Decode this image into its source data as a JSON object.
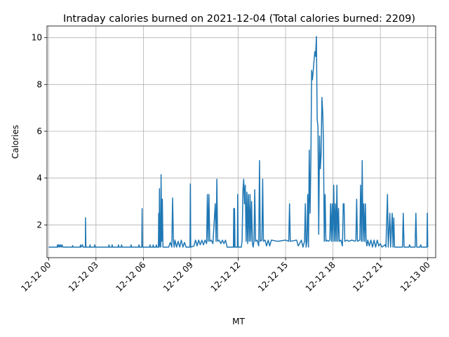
{
  "chart_data": {
    "type": "line",
    "title": "Intraday calories burned on 2021-12-04 (Total calories burned: 2209)",
    "xlabel": "MT",
    "ylabel": "Calories",
    "x_axis_kind": "time (hours)",
    "xlim": [
      -0.1,
      24.5
    ],
    "ylim": [
      0.6,
      10.5
    ],
    "grid": true,
    "x_ticks": [
      {
        "value": 0,
        "label": "12-12 00"
      },
      {
        "value": 3,
        "label": "12-12 03"
      },
      {
        "value": 6,
        "label": "12-12 06"
      },
      {
        "value": 9,
        "label": "12-12 09"
      },
      {
        "value": 12,
        "label": "12-12 12"
      },
      {
        "value": 15,
        "label": "12-12 15"
      },
      {
        "value": 18,
        "label": "12-12 18"
      },
      {
        "value": 21,
        "label": "12-12 21"
      },
      {
        "value": 24,
        "label": "12-13 00"
      }
    ],
    "y_ticks": [
      {
        "value": 2,
        "label": "2"
      },
      {
        "value": 4,
        "label": "4"
      },
      {
        "value": 6,
        "label": "6"
      },
      {
        "value": 8,
        "label": "8"
      },
      {
        "value": 10,
        "label": "10"
      }
    ],
    "series": [
      {
        "color": "#1f77b4",
        "baseline": 1.05,
        "points": [
          [
            0.0,
            1.05
          ],
          [
            0.55,
            1.05
          ],
          [
            0.56,
            1.15
          ],
          [
            0.6,
            1.05
          ],
          [
            0.65,
            1.15
          ],
          [
            0.7,
            1.05
          ],
          [
            0.75,
            1.15
          ],
          [
            0.8,
            1.05
          ],
          [
            0.85,
            1.15
          ],
          [
            0.9,
            1.05
          ],
          [
            1.5,
            1.05
          ],
          [
            1.52,
            1.12
          ],
          [
            1.55,
            1.05
          ],
          [
            2.0,
            1.05
          ],
          [
            2.02,
            1.15
          ],
          [
            2.05,
            1.05
          ],
          [
            2.15,
            1.15
          ],
          [
            2.18,
            1.05
          ],
          [
            2.33,
            1.05
          ],
          [
            2.34,
            2.3
          ],
          [
            2.36,
            1.05
          ],
          [
            2.6,
            1.05
          ],
          [
            2.62,
            1.15
          ],
          [
            2.65,
            1.05
          ],
          [
            2.9,
            1.05
          ],
          [
            2.92,
            1.15
          ],
          [
            2.95,
            1.05
          ],
          [
            3.8,
            1.05
          ],
          [
            3.82,
            1.15
          ],
          [
            3.85,
            1.05
          ],
          [
            4.0,
            1.05
          ],
          [
            4.02,
            1.15
          ],
          [
            4.05,
            1.05
          ],
          [
            4.4,
            1.05
          ],
          [
            4.42,
            1.15
          ],
          [
            4.45,
            1.05
          ],
          [
            4.6,
            1.05
          ],
          [
            4.62,
            1.15
          ],
          [
            4.65,
            1.05
          ],
          [
            5.2,
            1.05
          ],
          [
            5.22,
            1.15
          ],
          [
            5.25,
            1.05
          ],
          [
            5.7,
            1.05
          ],
          [
            5.72,
            1.15
          ],
          [
            5.75,
            1.05
          ],
          [
            5.9,
            1.05
          ],
          [
            5.92,
            2.7
          ],
          [
            5.95,
            1.05
          ],
          [
            6.4,
            1.05
          ],
          [
            6.42,
            1.15
          ],
          [
            6.45,
            1.05
          ],
          [
            6.6,
            1.05
          ],
          [
            6.62,
            1.15
          ],
          [
            6.65,
            1.05
          ],
          [
            6.8,
            1.05
          ],
          [
            6.82,
            1.15
          ],
          [
            6.85,
            1.05
          ],
          [
            6.95,
            1.05
          ],
          [
            6.97,
            2.5
          ],
          [
            7.0,
            1.05
          ],
          [
            7.02,
            3.55
          ],
          [
            7.06,
            1.15
          ],
          [
            7.1,
            1.05
          ],
          [
            7.12,
            4.15
          ],
          [
            7.16,
            1.3
          ],
          [
            7.2,
            3.1
          ],
          [
            7.24,
            1.05
          ],
          [
            7.6,
            1.05
          ],
          [
            7.7,
            1.25
          ],
          [
            7.8,
            1.05
          ],
          [
            7.85,
            3.15
          ],
          [
            7.9,
            1.35
          ],
          [
            7.95,
            1.05
          ],
          [
            8.0,
            1.35
          ],
          [
            8.1,
            1.05
          ],
          [
            8.2,
            1.3
          ],
          [
            8.3,
            1.05
          ],
          [
            8.4,
            1.35
          ],
          [
            8.5,
            1.05
          ],
          [
            8.6,
            1.25
          ],
          [
            8.7,
            1.05
          ],
          [
            8.95,
            1.05
          ],
          [
            8.97,
            3.75
          ],
          [
            9.0,
            1.05
          ],
          [
            9.2,
            1.1
          ],
          [
            9.3,
            1.35
          ],
          [
            9.4,
            1.1
          ],
          [
            9.5,
            1.35
          ],
          [
            9.6,
            1.15
          ],
          [
            9.7,
            1.35
          ],
          [
            9.8,
            1.15
          ],
          [
            9.9,
            1.35
          ],
          [
            10.0,
            1.2
          ],
          [
            10.05,
            3.3
          ],
          [
            10.1,
            1.3
          ],
          [
            10.15,
            3.3
          ],
          [
            10.2,
            1.3
          ],
          [
            10.3,
            1.35
          ],
          [
            10.4,
            1.2
          ],
          [
            10.55,
            2.9
          ],
          [
            10.6,
            1.3
          ],
          [
            10.65,
            3.95
          ],
          [
            10.7,
            1.3
          ],
          [
            10.8,
            1.35
          ],
          [
            10.9,
            1.2
          ],
          [
            11.0,
            1.35
          ],
          [
            11.1,
            1.2
          ],
          [
            11.2,
            1.35
          ],
          [
            11.3,
            1.05
          ],
          [
            11.7,
            1.05
          ],
          [
            11.72,
            2.7
          ],
          [
            11.75,
            1.05
          ],
          [
            11.77,
            2.7
          ],
          [
            11.8,
            1.05
          ],
          [
            11.95,
            1.05
          ],
          [
            11.97,
            3.3
          ],
          [
            12.0,
            1.05
          ],
          [
            12.2,
            1.05
          ],
          [
            12.25,
            1.35
          ],
          [
            12.3,
            3.5
          ],
          [
            12.35,
            3.95
          ],
          [
            12.4,
            2.9
          ],
          [
            12.45,
            3.7
          ],
          [
            12.5,
            1.3
          ],
          [
            12.55,
            3.4
          ],
          [
            12.6,
            1.2
          ],
          [
            12.65,
            3.3
          ],
          [
            12.7,
            1.3
          ],
          [
            12.75,
            3.3
          ],
          [
            12.8,
            1.3
          ],
          [
            12.85,
            3.0
          ],
          [
            12.9,
            1.2
          ],
          [
            12.95,
            1.05
          ],
          [
            13.0,
            1.3
          ],
          [
            13.05,
            3.5
          ],
          [
            13.1,
            1.3
          ],
          [
            13.2,
            1.35
          ],
          [
            13.3,
            1.1
          ],
          [
            13.35,
            4.75
          ],
          [
            13.4,
            1.3
          ],
          [
            13.5,
            1.35
          ],
          [
            13.55,
            3.95
          ],
          [
            13.6,
            1.3
          ],
          [
            13.7,
            1.35
          ],
          [
            13.8,
            1.1
          ],
          [
            13.9,
            1.35
          ],
          [
            14.0,
            1.1
          ],
          [
            14.1,
            1.35
          ],
          [
            14.5,
            1.3
          ],
          [
            15.0,
            1.35
          ],
          [
            15.2,
            1.3
          ],
          [
            15.25,
            2.9
          ],
          [
            15.3,
            1.3
          ],
          [
            15.7,
            1.35
          ],
          [
            15.8,
            1.1
          ],
          [
            16.0,
            1.35
          ],
          [
            16.1,
            1.05
          ],
          [
            16.2,
            1.3
          ],
          [
            16.25,
            2.9
          ],
          [
            16.3,
            1.05
          ],
          [
            16.35,
            1.3
          ],
          [
            16.4,
            3.3
          ],
          [
            16.45,
            1.05
          ],
          [
            16.5,
            5.2
          ],
          [
            16.55,
            2.5
          ],
          [
            16.6,
            4.7
          ],
          [
            16.65,
            8.6
          ],
          [
            16.7,
            8.2
          ],
          [
            16.75,
            8.6
          ],
          [
            16.8,
            9.0
          ],
          [
            16.85,
            9.4
          ],
          [
            16.9,
            9.2
          ],
          [
            16.95,
            10.05
          ],
          [
            17.0,
            6.5
          ],
          [
            17.05,
            6.2
          ],
          [
            17.1,
            1.6
          ],
          [
            17.15,
            5.8
          ],
          [
            17.2,
            4.4
          ],
          [
            17.25,
            5.0
          ],
          [
            17.3,
            7.45
          ],
          [
            17.35,
            6.8
          ],
          [
            17.4,
            5.5
          ],
          [
            17.45,
            1.3
          ],
          [
            17.5,
            3.3
          ],
          [
            17.55,
            1.3
          ],
          [
            17.6,
            1.35
          ],
          [
            17.7,
            1.3
          ],
          [
            17.8,
            1.35
          ],
          [
            17.85,
            2.9
          ],
          [
            17.9,
            1.3
          ],
          [
            17.95,
            2.9
          ],
          [
            18.0,
            1.3
          ],
          [
            18.05,
            3.7
          ],
          [
            18.1,
            1.3
          ],
          [
            18.15,
            2.9
          ],
          [
            18.2,
            1.3
          ],
          [
            18.25,
            3.7
          ],
          [
            18.3,
            1.3
          ],
          [
            18.35,
            2.7
          ],
          [
            18.4,
            1.3
          ],
          [
            18.5,
            1.35
          ],
          [
            18.6,
            1.1
          ],
          [
            18.65,
            2.9
          ],
          [
            18.7,
            2.9
          ],
          [
            18.75,
            1.3
          ],
          [
            18.9,
            1.35
          ],
          [
            19.0,
            1.3
          ],
          [
            19.2,
            1.35
          ],
          [
            19.4,
            1.3
          ],
          [
            19.45,
            1.35
          ],
          [
            19.5,
            3.1
          ],
          [
            19.55,
            1.3
          ],
          [
            19.7,
            1.35
          ],
          [
            19.75,
            3.7
          ],
          [
            19.8,
            1.3
          ],
          [
            19.85,
            4.75
          ],
          [
            19.9,
            1.3
          ],
          [
            19.95,
            2.9
          ],
          [
            20.0,
            1.3
          ],
          [
            20.05,
            2.9
          ],
          [
            20.1,
            1.3
          ],
          [
            20.15,
            1.1
          ],
          [
            20.2,
            1.35
          ],
          [
            20.3,
            1.1
          ],
          [
            20.4,
            1.35
          ],
          [
            20.5,
            1.05
          ],
          [
            20.6,
            1.35
          ],
          [
            20.7,
            1.05
          ],
          [
            20.8,
            1.35
          ],
          [
            20.9,
            1.1
          ],
          [
            21.0,
            1.2
          ],
          [
            21.1,
            1.05
          ],
          [
            21.3,
            1.15
          ],
          [
            21.35,
            1.05
          ],
          [
            21.45,
            3.3
          ],
          [
            21.5,
            1.05
          ],
          [
            21.6,
            2.5
          ],
          [
            21.65,
            1.05
          ],
          [
            21.75,
            2.5
          ],
          [
            21.8,
            1.05
          ],
          [
            21.85,
            2.3
          ],
          [
            21.9,
            1.05
          ],
          [
            22.4,
            1.05
          ],
          [
            22.45,
            2.5
          ],
          [
            22.5,
            1.05
          ],
          [
            22.8,
            1.05
          ],
          [
            22.85,
            1.15
          ],
          [
            22.9,
            1.05
          ],
          [
            23.2,
            1.05
          ],
          [
            23.25,
            2.5
          ],
          [
            23.3,
            1.05
          ],
          [
            23.5,
            1.05
          ],
          [
            23.55,
            1.15
          ],
          [
            23.6,
            1.05
          ],
          [
            23.95,
            1.05
          ],
          [
            23.97,
            2.5
          ],
          [
            24.0,
            1.05
          ]
        ]
      }
    ]
  }
}
